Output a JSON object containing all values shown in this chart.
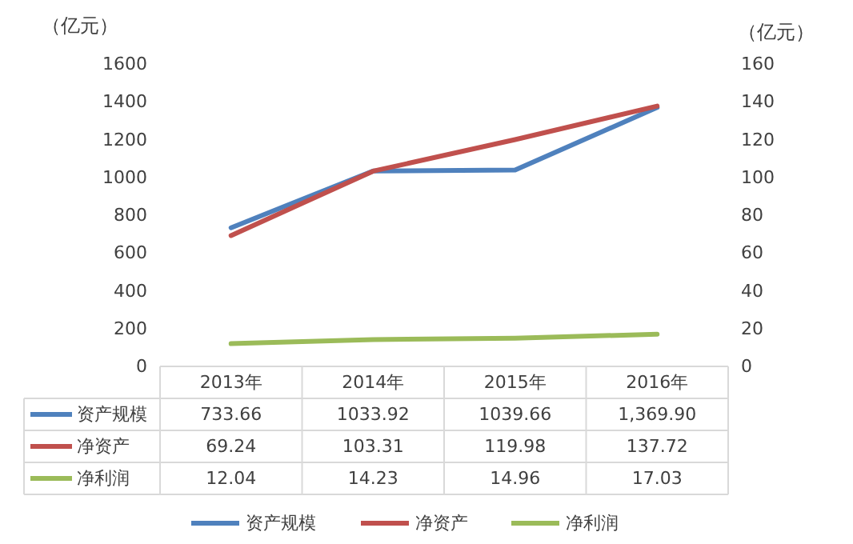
{
  "chart_data": {
    "type": "line",
    "ylabel": "（亿元）",
    "y2label": "（亿元）",
    "categories": [
      "2013年",
      "2014年",
      "2015年",
      "2016年"
    ],
    "series": [
      {
        "name": "资产规模",
        "color": "#4f81bd",
        "values": [
          733.66,
          1033.92,
          1039.66,
          1369.9
        ],
        "value_labels": [
          "733.66",
          "1033.92",
          "1039.66",
          "1,369.90"
        ]
      },
      {
        "name": "净资产",
        "color": "#c0504d",
        "axis": "y2",
        "values": [
          69.24,
          103.31,
          119.98,
          137.72
        ],
        "value_labels": [
          "69.24",
          "103.31",
          "119.98",
          "137.72"
        ]
      },
      {
        "name": "净利润",
        "color": "#9bbb59",
        "axis": "y2",
        "values": [
          12.04,
          14.23,
          14.96,
          17.03
        ],
        "value_labels": [
          "12.04",
          "14.23",
          "14.96",
          "17.03"
        ]
      }
    ],
    "ylim": [
      0,
      1600
    ],
    "yticks": [
      0,
      200,
      400,
      600,
      800,
      1000,
      1200,
      1400,
      1600
    ],
    "y2lim": [
      0,
      160
    ],
    "y2ticks": [
      0,
      20,
      40,
      60,
      80,
      100,
      120,
      140,
      160
    ],
    "legend": "bottom",
    "grid": false,
    "marker": "none",
    "line_style": "solid"
  }
}
